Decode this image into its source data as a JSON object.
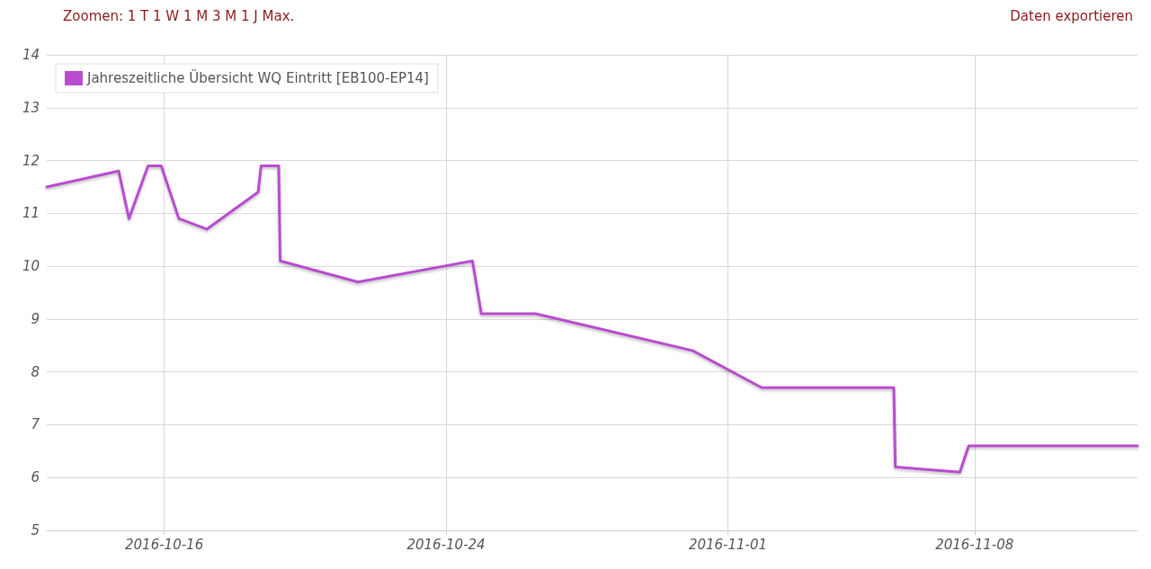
{
  "chart_data": {
    "type": "line",
    "x": [
      "2016-10-12T16:00",
      "2016-10-14T17:00",
      "2016-10-15T00:00",
      "2016-10-15T13:00",
      "2016-10-15T22:00",
      "2016-10-16T10:00",
      "2016-10-17T05:00",
      "2016-10-18T16:00",
      "2016-10-18T18:00",
      "2016-10-19T06:00",
      "2016-10-19T07:00",
      "2016-10-21T12:00",
      "2016-10-24T18:00",
      "2016-10-25T00:00",
      "2016-10-26T13:00",
      "2016-10-31T00:00",
      "2016-11-01T23:00",
      "2016-11-05T17:00",
      "2016-11-05T18:00",
      "2016-11-07T14:00",
      "2016-11-07T20:00",
      "2016-11-12T15:00"
    ],
    "series": [
      {
        "name": "Jahreszeitliche Übersicht WQ Eintritt [EB100-EP14]",
        "color": "#b84ccf",
        "values": [
          11.5,
          11.8,
          10.9,
          11.9,
          11.9,
          10.9,
          10.7,
          11.4,
          11.9,
          11.9,
          10.1,
          9.7,
          10.1,
          9.1,
          9.1,
          8.4,
          7.7,
          7.7,
          6.2,
          6.1,
          6.6,
          6.6
        ]
      }
    ],
    "xlim": [
      "2016-10-12T16:00",
      "2016-11-12T15:00"
    ],
    "xticks": [
      "2016-10-16",
      "2016-10-24",
      "2016-11-01",
      "2016-11-08"
    ],
    "ylim": [
      5,
      14
    ],
    "yticks": [
      5,
      6,
      7,
      8,
      9,
      10,
      11,
      12,
      13,
      14
    ],
    "grid": true,
    "legend": "top left",
    "marker": "none",
    "line_style": "solid",
    "annotations": [
      "Zoomen: 1 T 1 W 1 M 3 M 1 J Max.",
      "Daten exportieren"
    ]
  }
}
